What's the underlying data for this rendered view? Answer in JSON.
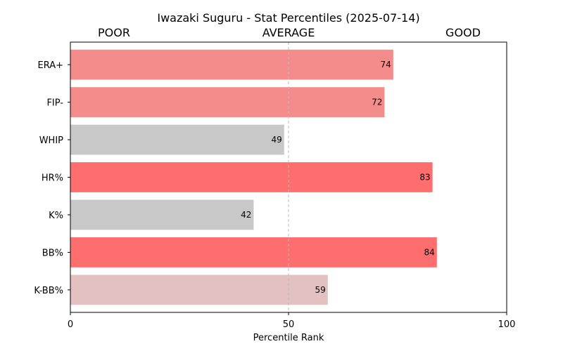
{
  "chart_data": {
    "type": "bar",
    "orientation": "horizontal",
    "title": "Iwazaki Suguru - Stat Percentiles (2025-07-14)",
    "xlabel": "Percentile Rank",
    "ylabel": "",
    "xlim": [
      0,
      100
    ],
    "x_ticks": [
      0,
      50,
      100
    ],
    "band_labels": [
      "POOR",
      "AVERAGE",
      "GOOD"
    ],
    "reference_line": 50,
    "grid": false,
    "categories": [
      "ERA+",
      "FIP-",
      "WHIP",
      "HR%",
      "K%",
      "BB%",
      "K-BB%"
    ],
    "values": [
      74,
      72,
      49,
      83,
      42,
      84,
      59
    ],
    "colors": [
      "#f48c8c",
      "#f48c8c",
      "#c8c8c8",
      "#ff6e6e",
      "#c8c8c8",
      "#ff6e6e",
      "#e3c1c1"
    ]
  }
}
